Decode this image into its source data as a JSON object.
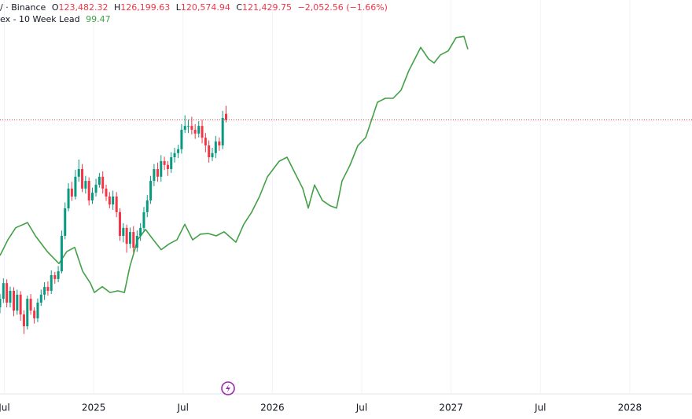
{
  "header": {
    "symbol": "/ · Binance",
    "ohlc": [
      {
        "label": "O",
        "value": "123,482.32"
      },
      {
        "label": "H",
        "value": "126,199.63"
      },
      {
        "label": "L",
        "value": "120,574.94"
      },
      {
        "label": "C",
        "value": "121,429.75"
      }
    ],
    "change": "−2,052.56 (−1.66%)",
    "index_value": "99.47"
  },
  "chart_data": {
    "type": "candlestick",
    "xlim": [
      2024.476,
      2028.348
    ],
    "xticks": [
      {
        "value": 2024.5,
        "label": "Jul"
      },
      2025,
      {
        "value": 2025.5,
        "label": "Jul"
      },
      2026,
      {
        "value": 2026.5,
        "label": "Jul"
      },
      2027,
      {
        "value": 2027.5,
        "label": "Jul"
      },
      2028
    ],
    "grid": true,
    "ylim": [
      29000,
      162000
    ],
    "y2lim": [
      40,
      108
    ],
    "last_price_line": true,
    "candles": {
      "up_color": "#089981",
      "down_color": "#f23645",
      "x": [
        2024.476,
        2024.495,
        2024.514,
        2024.533,
        2024.553,
        2024.572,
        2024.591,
        2024.61,
        2024.629,
        2024.648,
        2024.668,
        2024.687,
        2024.706,
        2024.725,
        2024.744,
        2024.763,
        2024.783,
        2024.802,
        2024.821,
        2024.84,
        2024.859,
        2024.878,
        2024.898,
        2024.917,
        2024.936,
        2024.955,
        2024.974,
        2024.993,
        2025.013,
        2025.032,
        2025.051,
        2025.07,
        2025.089,
        2025.108,
        2025.128,
        2025.147,
        2025.166,
        2025.185,
        2025.204,
        2025.223,
        2025.243,
        2025.262,
        2025.281,
        2025.3,
        2025.319,
        2025.338,
        2025.358,
        2025.377,
        2025.396,
        2025.415,
        2025.434,
        2025.453,
        2025.473,
        2025.492,
        2025.511,
        2025.53,
        2025.549,
        2025.568,
        2025.588,
        2025.607,
        2025.626,
        2025.645,
        2025.664,
        2025.683,
        2025.703,
        2025.722,
        2025.741
      ],
      "open": [
        58000,
        60900,
        66200,
        59600,
        63600,
        56900,
        62300,
        55600,
        51600,
        60900,
        56900,
        54300,
        59600,
        62300,
        64900,
        63600,
        68900,
        67600,
        70200,
        82200,
        91500,
        98200,
        95500,
        102200,
        104800,
        98200,
        100800,
        94200,
        96800,
        99500,
        102200,
        98200,
        95500,
        92800,
        95500,
        90200,
        82200,
        84900,
        79500,
        83500,
        78200,
        82200,
        84900,
        90200,
        94200,
        100800,
        104800,
        102200,
        107500,
        106200,
        104800,
        108800,
        110200,
        111500,
        118100,
        119400,
        119400,
        118100,
        116800,
        119400,
        115400,
        112800,
        108800,
        110200,
        114100,
        112800,
        123482.32
      ],
      "high": [
        62500,
        67800,
        67500,
        65000,
        64800,
        64000,
        63500,
        57000,
        62000,
        62500,
        58000,
        61000,
        64000,
        66500,
        66800,
        70500,
        70000,
        72000,
        84000,
        93500,
        100000,
        100500,
        104500,
        108000,
        106500,
        102500,
        102000,
        98500,
        101500,
        103500,
        104000,
        99500,
        97000,
        97500,
        97000,
        91500,
        86500,
        86000,
        85000,
        85500,
        84000,
        86500,
        92000,
        96000,
        102500,
        106500,
        107000,
        109500,
        109000,
        107500,
        110500,
        112000,
        113000,
        120000,
        123000,
        121500,
        122500,
        120000,
        121000,
        121500,
        117000,
        114500,
        112000,
        116000,
        115500,
        124500,
        126199.63
      ],
      "low": [
        56000,
        59500,
        58000,
        58000,
        55000,
        55500,
        53500,
        49000,
        50500,
        55500,
        52500,
        53000,
        58500,
        60500,
        62000,
        62500,
        66000,
        66500,
        69500,
        81000,
        90500,
        94000,
        94500,
        100500,
        97000,
        96500,
        92500,
        93000,
        95500,
        98500,
        96500,
        94000,
        91500,
        91000,
        88500,
        80500,
        80000,
        76500,
        78000,
        76500,
        76800,
        80500,
        83500,
        88500,
        93000,
        99000,
        100500,
        100500,
        104500,
        102500,
        103500,
        107000,
        108500,
        110000,
        117000,
        117000,
        116500,
        115000,
        115500,
        113500,
        110500,
        107000,
        107500,
        108500,
        111000,
        111500,
        120574.94
      ],
      "close": [
        60900,
        66200,
        59600,
        63600,
        56900,
        62300,
        55600,
        51600,
        60900,
        56900,
        54300,
        59600,
        62300,
        64900,
        63600,
        68900,
        67600,
        70200,
        82200,
        91500,
        98200,
        95500,
        102200,
        104800,
        98200,
        100800,
        94200,
        96800,
        99500,
        102200,
        98200,
        95500,
        92800,
        95500,
        90200,
        82200,
        84900,
        79500,
        83500,
        78200,
        82200,
        84900,
        90200,
        94200,
        100800,
        104800,
        102200,
        107500,
        106200,
        104800,
        108800,
        110200,
        111500,
        118100,
        119400,
        119400,
        118100,
        116800,
        119400,
        115400,
        112800,
        108800,
        110200,
        114100,
        112800,
        122100,
        121429.75
      ]
    },
    "series": [
      {
        "name": "ex - 10 Week Lead",
        "color": "#43a047",
        "axis": "y2",
        "x": [
          2024.476,
          2024.52,
          2024.564,
          2024.63,
          2024.674,
          2024.74,
          2024.806,
          2024.85,
          2024.894,
          2024.938,
          2024.982,
          2025.004,
          2025.048,
          2025.092,
          2025.136,
          2025.172,
          2025.202,
          2025.246,
          2025.29,
          2025.334,
          2025.378,
          2025.422,
          2025.466,
          2025.51,
          2025.554,
          2025.598,
          2025.642,
          2025.686,
          2025.73,
          2025.796,
          2025.84,
          2025.884,
          2025.928,
          2025.972,
          2026.038,
          2026.082,
          2026.126,
          2026.17,
          2026.201,
          2026.236,
          2026.28,
          2026.324,
          2026.359,
          2026.39,
          2026.434,
          2026.478,
          2026.522,
          2026.588,
          2026.632,
          2026.676,
          2026.72,
          2026.764,
          2026.83,
          2026.874,
          2026.905,
          2026.94,
          2026.984,
          2027.028,
          2027.072,
          2027.094
        ],
        "values": [
          63.8,
          66.5,
          68.6,
          69.5,
          67.2,
          64.5,
          62.4,
          64.5,
          65.2,
          61.1,
          59.0,
          57.4,
          58.4,
          57.4,
          57.7,
          57.4,
          61.8,
          66.5,
          68.3,
          66.5,
          64.8,
          65.8,
          66.5,
          69.2,
          66.5,
          67.5,
          67.6,
          67.2,
          67.9,
          66.1,
          69.2,
          71.3,
          74.0,
          77.4,
          80.1,
          80.8,
          78.1,
          75.4,
          72.0,
          76.0,
          73.3,
          72.4,
          72.0,
          76.7,
          79.4,
          82.8,
          84.2,
          90.3,
          91.0,
          91.0,
          92.4,
          95.8,
          99.8,
          97.8,
          97.1,
          98.5,
          99.2,
          101.5,
          101.7,
          99.47
        ]
      }
    ]
  }
}
